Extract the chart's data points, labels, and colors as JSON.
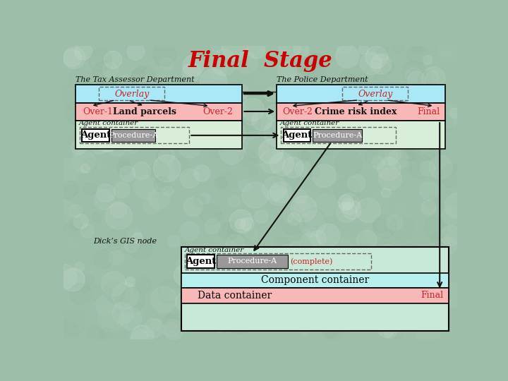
{
  "title": "Final  Stage",
  "title_color": "#cc0000",
  "title_fontsize": 22,
  "bg_color": "#9dbfaa",
  "tax_dept_label": "The Tax Assessor Department",
  "police_dept_label": "The Police Department",
  "gis_node_label": "Dick’s GIS node",
  "light_blue": "#aae8f8",
  "light_pink": "#f8b8b8",
  "light_green_bg": "#c8e8d8",
  "light_cyan": "#b8f0f0",
  "white": "#ffffff",
  "gray_proc": "#999999",
  "dash_color": "#666666",
  "red_text": "#cc2222",
  "arrow_color": "#111111",
  "agent_container_bg": "#d8eed8",
  "gis_outer_bg": "#c8e8d8"
}
